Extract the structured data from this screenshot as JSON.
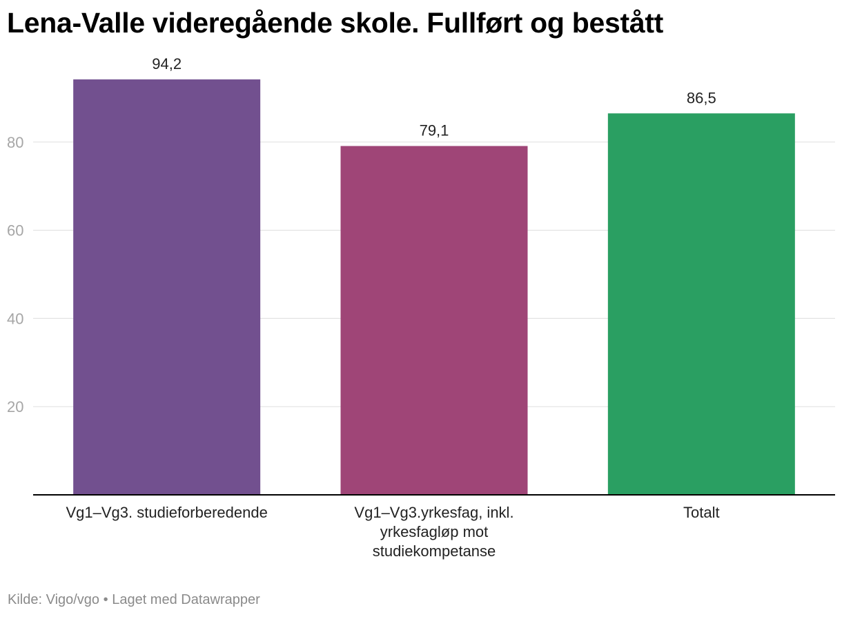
{
  "title": "Lena-Valle videregående skole. Fullført og bestått",
  "footer": {
    "source": "Kilde: Vigo/vgo",
    "separator": "•",
    "credit": "Laget med Datawrapper"
  },
  "chart_data": {
    "type": "bar",
    "categories": [
      [
        "Vg1–Vg3. studieforberedende"
      ],
      [
        "Vg1–Vg3.yrkesfag, inkl.",
        "yrkesfagløp mot",
        "studiekompetanse"
      ],
      [
        "Totalt"
      ]
    ],
    "values": [
      94.2,
      79.1,
      86.5
    ],
    "value_labels": [
      "94,2",
      "79,1",
      "86,5"
    ],
    "colors": [
      "#72508f",
      "#9f4577",
      "#2a9f62"
    ],
    "yticks": [
      20,
      40,
      60,
      80
    ],
    "ylim": [
      0,
      100
    ],
    "grid": true,
    "axis_color": "#000000",
    "grid_color": "#e2e2e2",
    "tick_label_color": "#a6a6a6"
  }
}
